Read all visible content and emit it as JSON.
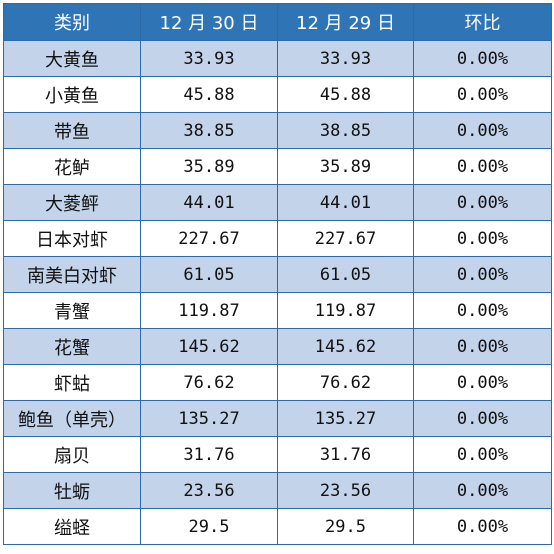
{
  "table": {
    "headers": [
      "类别",
      "12 月 30 日",
      "12 月 29 日",
      "环比"
    ],
    "rows": [
      [
        "大黄鱼",
        "33.93",
        "33.93",
        "0.00%"
      ],
      [
        "小黄鱼",
        "45.88",
        "45.88",
        "0.00%"
      ],
      [
        "带鱼",
        "38.85",
        "38.85",
        "0.00%"
      ],
      [
        "花鲈",
        "35.89",
        "35.89",
        "0.00%"
      ],
      [
        "大菱鲆",
        "44.01",
        "44.01",
        "0.00%"
      ],
      [
        "日本对虾",
        "227.67",
        "227.67",
        "0.00%"
      ],
      [
        "南美白对虾",
        "61.05",
        "61.05",
        "0.00%"
      ],
      [
        "青蟹",
        "119.87",
        "119.87",
        "0.00%"
      ],
      [
        "花蟹",
        "145.62",
        "145.62",
        "0.00%"
      ],
      [
        "虾蛄",
        "76.62",
        "76.62",
        "0.00%"
      ],
      [
        "鲍鱼（单壳）",
        "135.27",
        "135.27",
        "0.00%"
      ],
      [
        "扇贝",
        "31.76",
        "31.76",
        "0.00%"
      ],
      [
        "牡蛎",
        "23.56",
        "23.56",
        "0.00%"
      ],
      [
        "缢蛏",
        "29.5",
        "29.5",
        "0.00%"
      ]
    ]
  },
  "colors": {
    "header_bg": "#2f74b5",
    "stripe_bg": "#c3d3ea",
    "border": "#2f6aa8"
  }
}
